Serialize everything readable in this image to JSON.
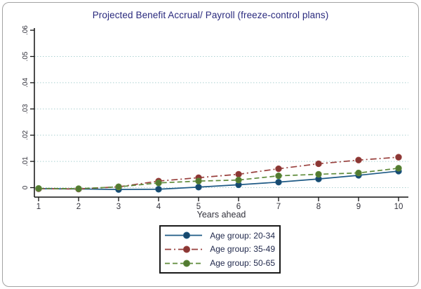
{
  "chart_data": {
    "type": "line",
    "title": "Projected Benefit Accrual/ Payroll (freeze-control plans)",
    "xlabel": "Years ahead",
    "ylabel": "",
    "x": [
      1,
      2,
      3,
      4,
      5,
      6,
      7,
      8,
      9,
      10
    ],
    "x_tick_labels": [
      "1",
      "2",
      "3",
      "4",
      "5",
      "6",
      "7",
      "8",
      "9",
      "10"
    ],
    "y_ticks": [
      {
        "value": 0,
        "label": "0"
      },
      {
        "value": 0.01,
        "label": ".01"
      },
      {
        "value": 0.02,
        "label": ".02"
      },
      {
        "value": 0.03,
        "label": ".03"
      },
      {
        "value": 0.04,
        "label": ".04"
      },
      {
        "value": 0.05,
        "label": ".05"
      },
      {
        "value": 0.06,
        "label": ".06"
      }
    ],
    "grid_values": [
      0,
      0.01,
      0.02,
      0.03,
      0.04,
      0.05
    ],
    "ylim": [
      -0.0036,
      0.061
    ],
    "xlim": [
      0.9,
      10.25
    ],
    "grid_style": "dotted",
    "legend_position": "bottom-center",
    "series": [
      {
        "name": "Age group: 20-34",
        "color": "#1e5a85",
        "marker_color": "#18496d",
        "dash": "solid",
        "values": [
          -0.0004,
          -0.0005,
          -0.0007,
          -0.0006,
          0.0002,
          0.0011,
          0.0021,
          0.0033,
          0.0047,
          0.0063
        ]
      },
      {
        "name": "Age group: 35-49",
        "color": "#99403d",
        "marker_color": "#8a3734",
        "dash": "dash-dot",
        "values": [
          -0.0004,
          -0.0005,
          0.0003,
          0.0025,
          0.0038,
          0.0051,
          0.0072,
          0.0091,
          0.0105,
          0.0116
        ]
      },
      {
        "name": "Age group: 50-65",
        "color": "#5e8b3a",
        "marker_color": "#527a31",
        "dash": "dash",
        "values": [
          -0.0003,
          -0.0004,
          0.0003,
          0.0018,
          0.0025,
          0.0029,
          0.0045,
          0.0051,
          0.0056,
          0.0074
        ]
      }
    ],
    "colors": {
      "grid": "#abd1d1",
      "axis": "#111111",
      "tick_text": "#31313b",
      "title_text": "#29297d",
      "legend_text": "#222a4d",
      "legend_border": "#1a1a1a",
      "frame_border": "#a3a3a3",
      "background": "#ffffff"
    }
  }
}
